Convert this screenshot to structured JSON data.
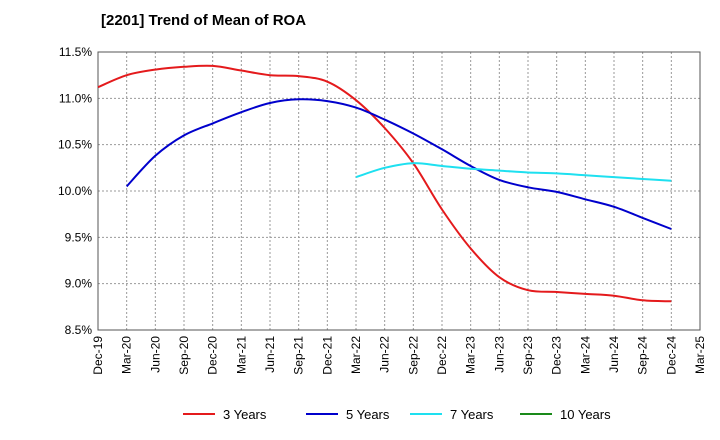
{
  "chart_data": {
    "type": "line",
    "title": "[2201]  Trend of Mean of ROA",
    "xlabel": "",
    "ylabel": "",
    "ylim": [
      8.5,
      11.5
    ],
    "y_ticks": [
      "11.5%",
      "11.0%",
      "10.5%",
      "10.0%",
      "9.5%",
      "9.0%",
      "8.5%"
    ],
    "y_tick_values": [
      11.5,
      11.0,
      10.5,
      10.0,
      9.5,
      9.0,
      8.5
    ],
    "categories": [
      "Dec-19",
      "Mar-20",
      "Jun-20",
      "Sep-20",
      "Dec-20",
      "Mar-21",
      "Jun-21",
      "Sep-21",
      "Dec-21",
      "Mar-22",
      "Jun-22",
      "Sep-22",
      "Dec-22",
      "Mar-23",
      "Jun-23",
      "Sep-23",
      "Dec-23",
      "Mar-24",
      "Jun-24",
      "Sep-24",
      "Dec-24",
      "Mar-25"
    ],
    "grid": true,
    "legend_position": "bottom",
    "series": [
      {
        "name": "3 Years",
        "color": "#e41a1c",
        "values": [
          11.12,
          11.25,
          11.31,
          11.34,
          11.35,
          11.3,
          11.25,
          11.24,
          11.18,
          10.98,
          10.68,
          10.3,
          9.8,
          9.38,
          9.07,
          8.93,
          8.91,
          8.89,
          8.87,
          8.82,
          8.81,
          null
        ]
      },
      {
        "name": "5 Years",
        "color": "#0000cc",
        "values": [
          null,
          10.05,
          10.38,
          10.6,
          10.73,
          10.85,
          10.95,
          10.99,
          10.97,
          10.9,
          10.77,
          10.62,
          10.45,
          10.27,
          10.12,
          10.04,
          9.99,
          9.91,
          9.83,
          9.71,
          9.59,
          null
        ]
      },
      {
        "name": "7 Years",
        "color": "#1ee0f0",
        "values": [
          null,
          null,
          null,
          null,
          null,
          null,
          null,
          null,
          null,
          10.15,
          10.25,
          10.3,
          10.27,
          10.24,
          10.22,
          10.2,
          10.19,
          10.17,
          10.15,
          10.13,
          10.11,
          null
        ]
      },
      {
        "name": "10 Years",
        "color": "#1a8a1a",
        "values": [
          null,
          null,
          null,
          null,
          null,
          null,
          null,
          null,
          null,
          null,
          null,
          null,
          null,
          null,
          null,
          null,
          null,
          null,
          null,
          null,
          null,
          null
        ]
      }
    ]
  }
}
